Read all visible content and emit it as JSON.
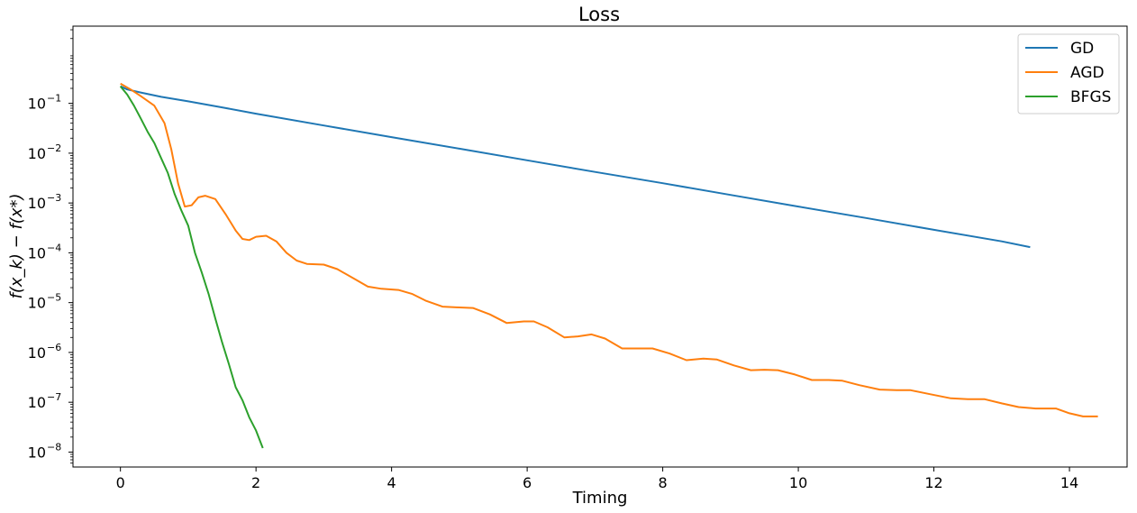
{
  "chart_data": {
    "type": "line",
    "title": "Loss",
    "xlabel": "Timing",
    "ylabel": "f(x_k) − f(x*)",
    "xlim": [
      -0.7,
      14.85
    ],
    "ylim_log10": [
      -8.3,
      0.55
    ],
    "yscale": "log",
    "grid": false,
    "legend_position": "top-right",
    "x_ticks": [
      0,
      2,
      4,
      6,
      8,
      10,
      12,
      14
    ],
    "y_ticks": [
      {
        "exp": -1,
        "label": "10",
        "sup": "−1"
      },
      {
        "exp": -2,
        "label": "10",
        "sup": "−2"
      },
      {
        "exp": -3,
        "label": "10",
        "sup": "−3"
      },
      {
        "exp": -4,
        "label": "10",
        "sup": "−4"
      },
      {
        "exp": -5,
        "label": "10",
        "sup": "−5"
      },
      {
        "exp": -6,
        "label": "10",
        "sup": "−6"
      },
      {
        "exp": -7,
        "label": "10",
        "sup": "−7"
      },
      {
        "exp": -8,
        "label": "10",
        "sup": "−8"
      }
    ],
    "series": [
      {
        "name": "GD",
        "color": "#1f77b4",
        "points": [
          [
            0,
            0.22
          ],
          [
            0.1,
            0.19
          ],
          [
            0.3,
            0.165
          ],
          [
            0.6,
            0.135
          ],
          [
            1,
            0.11
          ],
          [
            1.5,
            0.083
          ],
          [
            2,
            0.062
          ],
          [
            3,
            0.036
          ],
          [
            4,
            0.021
          ],
          [
            5,
            0.0123
          ],
          [
            6,
            0.0072
          ],
          [
            7,
            0.0042
          ],
          [
            8,
            0.0025
          ],
          [
            9,
            0.00145
          ],
          [
            10,
            0.00085
          ],
          [
            11,
            0.0005
          ],
          [
            12,
            0.00029
          ],
          [
            13,
            0.00017
          ],
          [
            13.42,
            0.00013
          ]
        ]
      },
      {
        "name": "AGD",
        "color": "#ff7f0e",
        "points": [
          [
            0,
            0.25
          ],
          [
            0.15,
            0.19
          ],
          [
            0.3,
            0.14
          ],
          [
            0.5,
            0.09
          ],
          [
            0.65,
            0.04
          ],
          [
            0.75,
            0.012
          ],
          [
            0.85,
            0.0025
          ],
          [
            0.95,
            0.00085
          ],
          [
            1.05,
            0.0009
          ],
          [
            1.15,
            0.0013
          ],
          [
            1.25,
            0.0014
          ],
          [
            1.4,
            0.0012
          ],
          [
            1.55,
            0.0006
          ],
          [
            1.7,
            0.00028
          ],
          [
            1.8,
            0.00019
          ],
          [
            1.9,
            0.00018
          ],
          [
            2.0,
            0.00021
          ],
          [
            2.15,
            0.00022
          ],
          [
            2.3,
            0.00017
          ],
          [
            2.45,
            0.0001
          ],
          [
            2.6,
            7e-05
          ],
          [
            2.75,
            6e-05
          ],
          [
            3.0,
            5.8e-05
          ],
          [
            3.2,
            4.7e-05
          ],
          [
            3.45,
            3e-05
          ],
          [
            3.65,
            2.1e-05
          ],
          [
            3.85,
            1.9e-05
          ],
          [
            4.1,
            1.8e-05
          ],
          [
            4.3,
            1.5e-05
          ],
          [
            4.5,
            1.1e-05
          ],
          [
            4.75,
            8.3e-06
          ],
          [
            5.0,
            8e-06
          ],
          [
            5.2,
            7.8e-06
          ],
          [
            5.45,
            5.8e-06
          ],
          [
            5.7,
            3.9e-06
          ],
          [
            5.95,
            4.2e-06
          ],
          [
            6.1,
            4.2e-06
          ],
          [
            6.3,
            3.2e-06
          ],
          [
            6.55,
            2e-06
          ],
          [
            6.75,
            2.1e-06
          ],
          [
            6.95,
            2.3e-06
          ],
          [
            7.15,
            1.9e-06
          ],
          [
            7.4,
            1.2e-06
          ],
          [
            7.6,
            1.2e-06
          ],
          [
            7.85,
            1.2e-06
          ],
          [
            8.1,
            9.5e-07
          ],
          [
            8.35,
            7e-07
          ],
          [
            8.6,
            7.5e-07
          ],
          [
            8.8,
            7.2e-07
          ],
          [
            9.05,
            5.5e-07
          ],
          [
            9.3,
            4.4e-07
          ],
          [
            9.5,
            4.5e-07
          ],
          [
            9.7,
            4.4e-07
          ],
          [
            9.95,
            3.6e-07
          ],
          [
            10.2,
            2.8e-07
          ],
          [
            10.45,
            2.8e-07
          ],
          [
            10.65,
            2.7e-07
          ],
          [
            10.9,
            2.2e-07
          ],
          [
            11.2,
            1.8e-07
          ],
          [
            11.45,
            1.75e-07
          ],
          [
            11.65,
            1.75e-07
          ],
          [
            11.95,
            1.45e-07
          ],
          [
            12.25,
            1.2e-07
          ],
          [
            12.5,
            1.15e-07
          ],
          [
            12.75,
            1.15e-07
          ],
          [
            13.0,
            9.5e-08
          ],
          [
            13.25,
            8e-08
          ],
          [
            13.5,
            7.5e-08
          ],
          [
            13.8,
            7.5e-08
          ],
          [
            14.0,
            6e-08
          ],
          [
            14.2,
            5.2e-08
          ],
          [
            14.42,
            5.2e-08
          ]
        ]
      },
      {
        "name": "BFGS",
        "color": "#2ca02c",
        "points": [
          [
            0,
            0.22
          ],
          [
            0.1,
            0.15
          ],
          [
            0.2,
            0.09
          ],
          [
            0.3,
            0.05
          ],
          [
            0.4,
            0.027
          ],
          [
            0.5,
            0.016
          ],
          [
            0.6,
            0.008
          ],
          [
            0.7,
            0.004
          ],
          [
            0.8,
            0.0015
          ],
          [
            0.9,
            0.0007
          ],
          [
            1.0,
            0.00035
          ],
          [
            1.1,
            0.0001
          ],
          [
            1.2,
            4e-05
          ],
          [
            1.3,
            1.5e-05
          ],
          [
            1.4,
            4.8e-06
          ],
          [
            1.5,
            1.6e-06
          ],
          [
            1.6,
            5.8e-07
          ],
          [
            1.7,
            2e-07
          ],
          [
            1.8,
            1.1e-07
          ],
          [
            1.9,
            5e-08
          ],
          [
            2.0,
            2.7e-08
          ],
          [
            2.1,
            1.2e-08
          ]
        ]
      }
    ]
  }
}
